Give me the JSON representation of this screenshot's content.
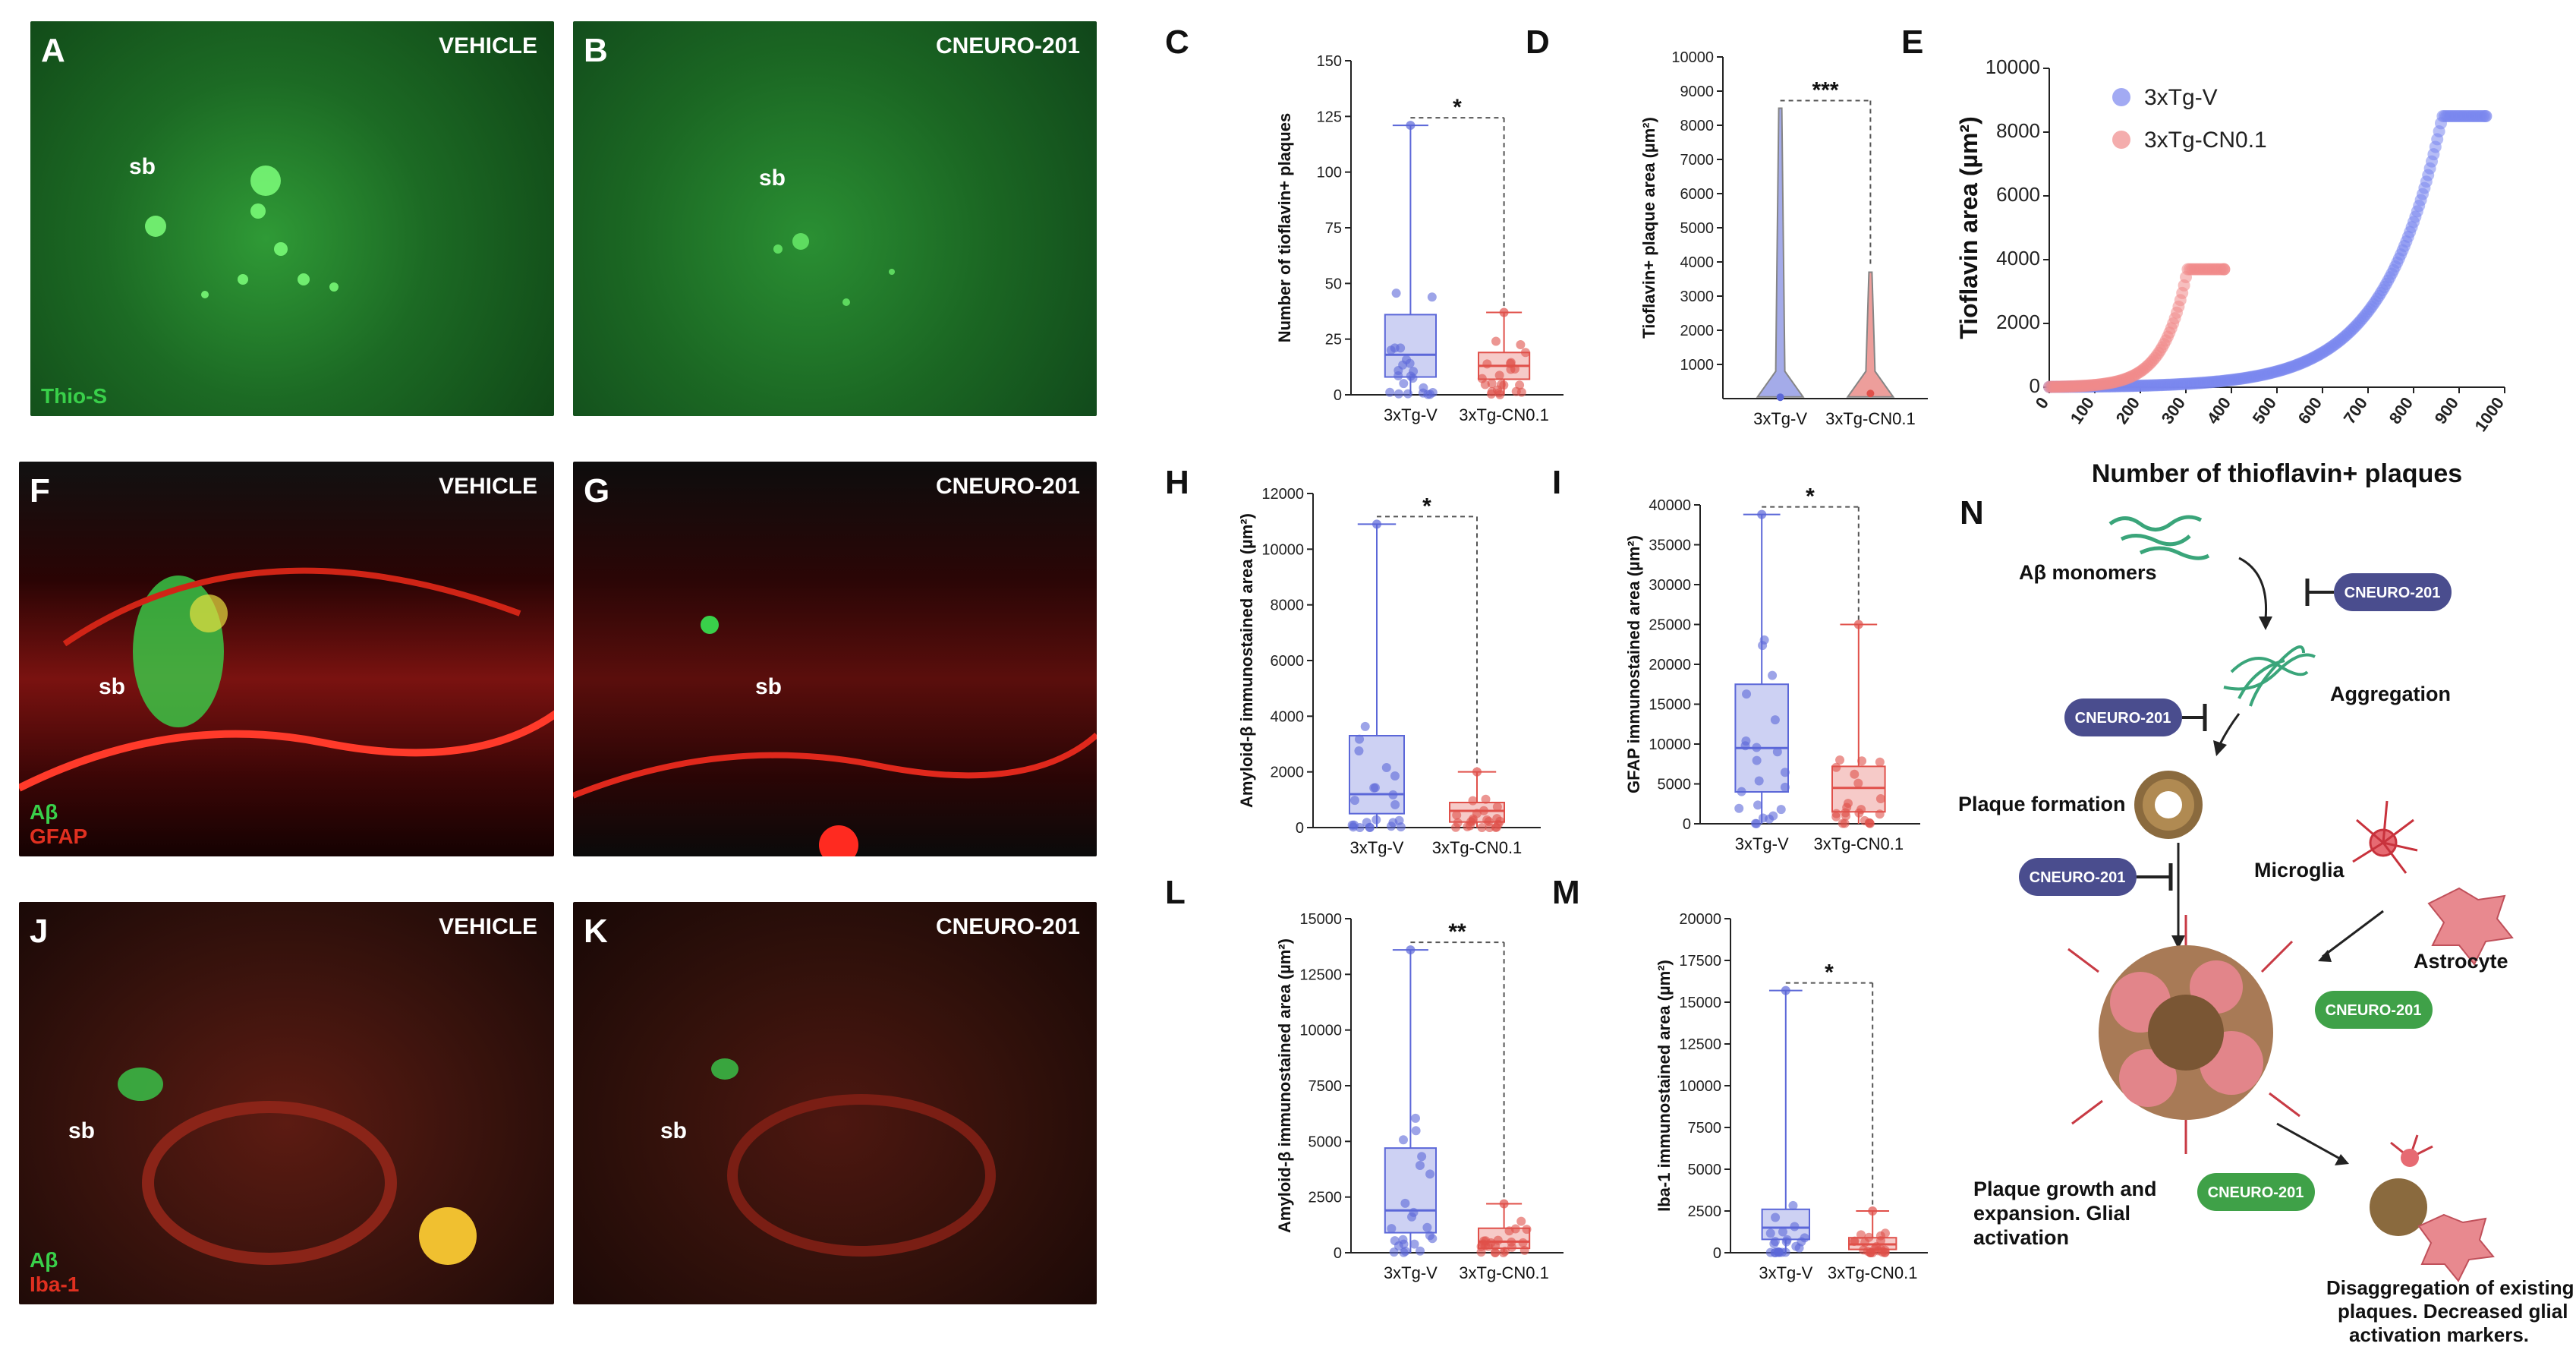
{
  "micrographs": [
    {
      "id": "A",
      "letter": "A",
      "title": "VEHICLE",
      "sb": "sb",
      "stains": [
        {
          "text": "Thio-S",
          "color": "#39d04a"
        }
      ],
      "bg": "thio",
      "sb_pos": "left"
    },
    {
      "id": "B",
      "letter": "B",
      "title": "CNEURO-201",
      "sb": "sb",
      "stains": [],
      "bg": "thio2",
      "sb_pos": "mid"
    },
    {
      "id": "F",
      "letter": "F",
      "title": "VEHICLE",
      "sb": "sb",
      "stains": [
        {
          "text": "Aβ",
          "color": "#39d04a"
        },
        {
          "text": "GFAP",
          "color": "#e03020"
        }
      ],
      "bg": "gfap",
      "sb_pos": "left"
    },
    {
      "id": "G",
      "letter": "G",
      "title": "CNEURO-201",
      "sb": "sb",
      "stains": [],
      "bg": "gfap2",
      "sb_pos": "mid"
    },
    {
      "id": "J",
      "letter": "J",
      "title": "VEHICLE",
      "sb": "sb",
      "stains": [
        {
          "text": "Aβ",
          "color": "#39d04a"
        },
        {
          "text": "Iba-1",
          "color": "#e03020"
        }
      ],
      "bg": "iba",
      "sb_pos": "left"
    },
    {
      "id": "K",
      "letter": "K",
      "title": "CNEURO-201",
      "sb": "sb",
      "stains": [],
      "bg": "iba2",
      "sb_pos": "mid"
    }
  ],
  "chart_data": [
    {
      "panel": "C",
      "type": "box",
      "ylabel": "Number of tioflavin+ plaques",
      "ylim": [
        0,
        150
      ],
      "yticks": [
        "0",
        "25",
        "50",
        "75",
        "100",
        "125",
        "150"
      ],
      "categories": [
        "3xTg-V",
        "3xTg-CN0.1"
      ],
      "significance": "*",
      "series": [
        {
          "name": "3xTg-V",
          "min": 0,
          "q1": 8,
          "median": 18,
          "q3": 36,
          "max": 121,
          "color": "#5b67d8"
        },
        {
          "name": "3xTg-CN0.1",
          "min": 0,
          "q1": 7,
          "median": 13,
          "q3": 19,
          "max": 37,
          "color": "#e0504a"
        }
      ]
    },
    {
      "panel": "D",
      "type": "violin",
      "ylabel": "Tioflavin+ plaque area (µm²)",
      "ylim": [
        0,
        10000
      ],
      "yticks": [
        "1000",
        "2000",
        "3000",
        "4000",
        "5000",
        "6000",
        "7000",
        "8000",
        "9000",
        "10000"
      ],
      "categories": [
        "3xTg-V",
        "3xTg-CN0.1"
      ],
      "significance": "***",
      "series": [
        {
          "name": "3xTg-V",
          "max": 8500,
          "median": 40,
          "color": "#5b67d8"
        },
        {
          "name": "3xTg-CN0.1",
          "max": 3700,
          "median": 150,
          "color": "#e0504a"
        }
      ]
    },
    {
      "panel": "E",
      "type": "scatter",
      "ylabel": "Tioflavin area (µm²)",
      "xlabel": "Number of thioflavin+ plaques",
      "xlim": [
        0,
        1000
      ],
      "ylim": [
        0,
        10000
      ],
      "xticks": [
        "0",
        "100",
        "200",
        "300",
        "400",
        "500",
        "600",
        "700",
        "800",
        "900",
        "1000"
      ],
      "yticks": [
        "0",
        "2000",
        "4000",
        "6000",
        "8000",
        "10000"
      ],
      "legend": [
        {
          "name": "3xTg-V",
          "color": "#7a86ee"
        },
        {
          "name": "3xTg-CN0.1",
          "color": "#f08a8a"
        }
      ],
      "series": [
        {
          "name": "3xTg-V",
          "n": 960,
          "max": 8500
        },
        {
          "name": "3xTg-CN0.1",
          "n": 385,
          "max": 3700
        }
      ]
    },
    {
      "panel": "H",
      "type": "box",
      "ylabel": "Amyloid-β immunostained area (µm²)",
      "ylim": [
        0,
        12000
      ],
      "yticks": [
        "0",
        "2000",
        "4000",
        "6000",
        "8000",
        "10000",
        "12000"
      ],
      "categories": [
        "3xTg-V",
        "3xTg-CN0.1"
      ],
      "significance": "*",
      "series": [
        {
          "name": "3xTg-V",
          "min": 0,
          "q1": 500,
          "median": 1200,
          "q3": 3300,
          "max": 10900,
          "color": "#5b67d8"
        },
        {
          "name": "3xTg-CN0.1",
          "min": 0,
          "q1": 200,
          "median": 600,
          "q3": 900,
          "max": 2000,
          "color": "#e0504a"
        }
      ]
    },
    {
      "panel": "I",
      "type": "box",
      "ylabel": "GFAP immunostained area (µm²)",
      "ylim": [
        0,
        40000
      ],
      "yticks": [
        "0",
        "5000",
        "10000",
        "15000",
        "20000",
        "25000",
        "30000",
        "35000",
        "40000"
      ],
      "categories": [
        "3xTg-V",
        "3xTg-CN0.1"
      ],
      "significance": "*",
      "series": [
        {
          "name": "3xTg-V",
          "min": 0,
          "q1": 4000,
          "median": 9500,
          "q3": 17500,
          "max": 38800,
          "color": "#5b67d8"
        },
        {
          "name": "3xTg-CN0.1",
          "min": 0,
          "q1": 1500,
          "median": 4500,
          "q3": 7200,
          "max": 25000,
          "color": "#e0504a"
        }
      ]
    },
    {
      "panel": "L",
      "type": "box",
      "ylabel": "Amyloid-β immunostained area (µm²)",
      "ylim": [
        0,
        15000
      ],
      "yticks": [
        "0",
        "2500",
        "5000",
        "7500",
        "10000",
        "12500",
        "15000"
      ],
      "categories": [
        "3xTg-V",
        "3xTg-CN0.1"
      ],
      "significance": "**",
      "series": [
        {
          "name": "3xTg-V",
          "min": 0,
          "q1": 900,
          "median": 1900,
          "q3": 4700,
          "max": 13600,
          "color": "#5b67d8"
        },
        {
          "name": "3xTg-CN0.1",
          "min": 0,
          "q1": 200,
          "median": 500,
          "q3": 1100,
          "max": 2200,
          "color": "#e0504a"
        }
      ]
    },
    {
      "panel": "M",
      "type": "box",
      "ylabel": "Iba-1 immunostained area (µm²)",
      "ylim": [
        0,
        20000
      ],
      "yticks": [
        "0",
        "2500",
        "5000",
        "7500",
        "10000",
        "12500",
        "15000",
        "17500",
        "20000"
      ],
      "categories": [
        "3xTg-V",
        "3xTg-CN0.1"
      ],
      "significance": "*",
      "series": [
        {
          "name": "3xTg-V",
          "min": 0,
          "q1": 800,
          "median": 1500,
          "q3": 2600,
          "max": 15700,
          "color": "#5b67d8"
        },
        {
          "name": "3xTg-CN0.1",
          "min": 0,
          "q1": 200,
          "median": 500,
          "q3": 900,
          "max": 2500,
          "color": "#e0504a"
        }
      ]
    }
  ],
  "diagram": {
    "letter": "N",
    "monomers": "Aβ monomers",
    "aggregation": "Aggregation",
    "plaque_formation": "Plaque formation",
    "microglia": "Microglia",
    "astrocyte": "Astrocyte",
    "growth": [
      "Plaque growth and",
      "expansion. Glial",
      "activation"
    ],
    "disaggregation": [
      "Disaggregation of existing",
      "plaques. Decreased glial",
      "activation markers."
    ],
    "drug": "CNEURO-201",
    "inhibit_color": "#4a4d8e",
    "promote_color": "#3fa148"
  }
}
